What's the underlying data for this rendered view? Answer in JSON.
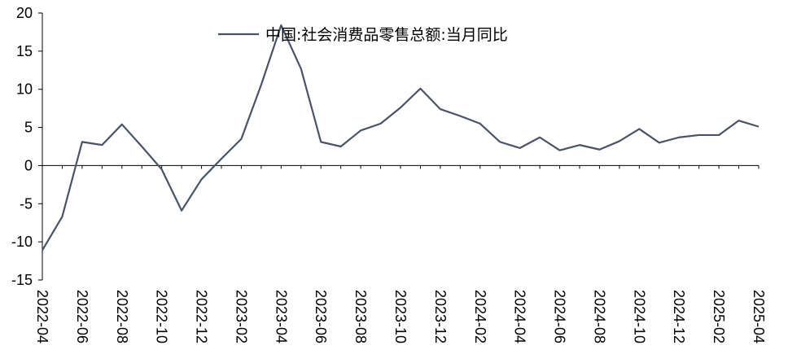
{
  "chart_data": {
    "type": "line",
    "x": [
      "2022-04",
      "2022-05",
      "2022-06",
      "2022-07",
      "2022-08",
      "2022-09",
      "2022-10",
      "2022-11",
      "2022-12",
      "2023-01",
      "2023-02",
      "2023-03",
      "2023-04",
      "2023-05",
      "2023-06",
      "2023-07",
      "2023-08",
      "2023-09",
      "2023-10",
      "2023-11",
      "2023-12",
      "2024-01",
      "2024-02",
      "2024-03",
      "2024-04",
      "2024-05",
      "2024-06",
      "2024-07",
      "2024-08",
      "2024-09",
      "2024-10",
      "2024-11",
      "2024-12",
      "2025-01",
      "2025-02",
      "2025-03",
      "2025-04"
    ],
    "x_tick_labels": [
      "2022-04",
      "2022-06",
      "2022-08",
      "2022-10",
      "2022-12",
      "2023-02",
      "2023-04",
      "2023-06",
      "2023-08",
      "2023-10",
      "2023-12",
      "2024-02",
      "2024-04",
      "2024-06",
      "2024-08",
      "2024-10",
      "2024-12",
      "2025-02",
      "2025-04"
    ],
    "series": [
      {
        "name": "中国:社会消费品零售总额:当月同比",
        "color": "#4a5366",
        "values": [
          -11.1,
          -6.7,
          3.1,
          2.7,
          5.4,
          2.5,
          -0.5,
          -5.9,
          -1.8,
          0.9,
          3.5,
          10.6,
          18.4,
          12.7,
          3.1,
          2.5,
          4.6,
          5.5,
          7.6,
          10.1,
          7.4,
          6.5,
          5.5,
          3.1,
          2.3,
          3.7,
          2.0,
          2.7,
          2.1,
          3.2,
          4.8,
          3.0,
          3.7,
          4.0,
          4.0,
          5.9,
          5.1
        ]
      }
    ],
    "ylim": [
      -15,
      20
    ],
    "y_ticks": [
      -15,
      -10,
      -5,
      0,
      5,
      10,
      15,
      20
    ],
    "grid": false,
    "legend": "top-center",
    "title": "",
    "xlabel": "",
    "ylabel": ""
  }
}
